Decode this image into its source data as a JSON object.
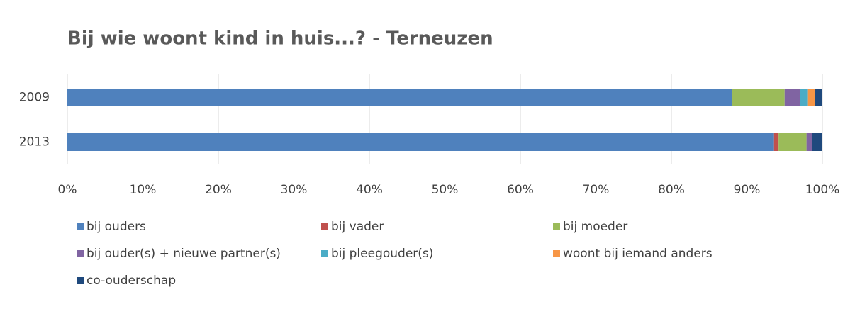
{
  "chart_data": {
    "type": "stacked-barh",
    "title": "Bij wie woont kind in huis...? - Terneuzen",
    "categories": [
      "2009",
      "2013"
    ],
    "series": [
      {
        "name": "bij ouders",
        "color": "#4f81bd",
        "values": [
          88,
          93.5
        ]
      },
      {
        "name": "bij vader",
        "color": "#c0504d",
        "values": [
          0,
          0.7
        ]
      },
      {
        "name": "bij moeder",
        "color": "#9bbb59",
        "values": [
          7,
          3.7
        ]
      },
      {
        "name": "bij ouder(s) + nieuwe partner(s)",
        "color": "#8064a2",
        "values": [
          2,
          0.7
        ]
      },
      {
        "name": "bij pleegouder(s)",
        "color": "#4bacc6",
        "values": [
          1,
          0
        ]
      },
      {
        "name": "woont bij iemand anders",
        "color": "#f79646",
        "values": [
          1,
          0
        ]
      },
      {
        "name": "co-ouderschap",
        "color": "#1f497d",
        "values": [
          1,
          1.4
        ]
      }
    ],
    "xlim": [
      0,
      100
    ],
    "xticks": [
      {
        "value": 0,
        "label": "0%"
      },
      {
        "value": 10,
        "label": "10%"
      },
      {
        "value": 20,
        "label": "20%"
      },
      {
        "value": 30,
        "label": "30%"
      },
      {
        "value": 40,
        "label": "40%"
      },
      {
        "value": 50,
        "label": "50%"
      },
      {
        "value": 60,
        "label": "60%"
      },
      {
        "value": 70,
        "label": "70%"
      },
      {
        "value": 80,
        "label": "80%"
      },
      {
        "value": 90,
        "label": "90%"
      },
      {
        "value": 100,
        "label": "100%"
      }
    ],
    "grid": true,
    "legend": "bottom"
  }
}
